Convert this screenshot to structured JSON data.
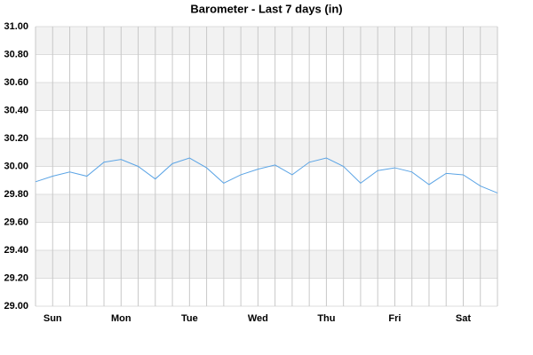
{
  "chart_data": {
    "type": "line",
    "title": "Barometer - Last 7 days (in)",
    "categories": [
      null,
      "Sun",
      null,
      null,
      null,
      "Mon",
      null,
      null,
      null,
      "Tue",
      null,
      null,
      null,
      "Wed",
      null,
      null,
      null,
      "Thu",
      null,
      null,
      null,
      "Fri",
      null,
      null,
      null,
      "Sat",
      null,
      null
    ],
    "series": [
      {
        "name": "Barometer",
        "color": "#5ba4e5",
        "values": [
          29.89,
          29.93,
          29.96,
          29.93,
          30.03,
          30.05,
          30.0,
          29.91,
          30.02,
          30.06,
          29.99,
          29.88,
          29.94,
          29.98,
          30.01,
          29.94,
          30.03,
          30.06,
          30.0,
          29.88,
          29.97,
          29.99,
          29.96,
          29.87,
          29.95,
          29.94,
          29.86,
          29.81
        ]
      }
    ],
    "ylim": [
      29,
      31
    ],
    "yticks": [
      {
        "value": 29,
        "label": "29.00"
      },
      {
        "value": 29.2,
        "label": "29.20"
      },
      {
        "value": 29.4,
        "label": "29.40"
      },
      {
        "value": 29.6,
        "label": "29.60"
      },
      {
        "value": 29.8,
        "label": "29.80"
      },
      {
        "value": 30,
        "label": "30.00"
      },
      {
        "value": 30.2,
        "label": "30.20"
      },
      {
        "value": 30.4,
        "label": "30.40"
      },
      {
        "value": 30.6,
        "label": "30.60"
      },
      {
        "value": 30.8,
        "label": "30.80"
      },
      {
        "value": 31,
        "label": "31.00"
      }
    ],
    "grid": true
  }
}
